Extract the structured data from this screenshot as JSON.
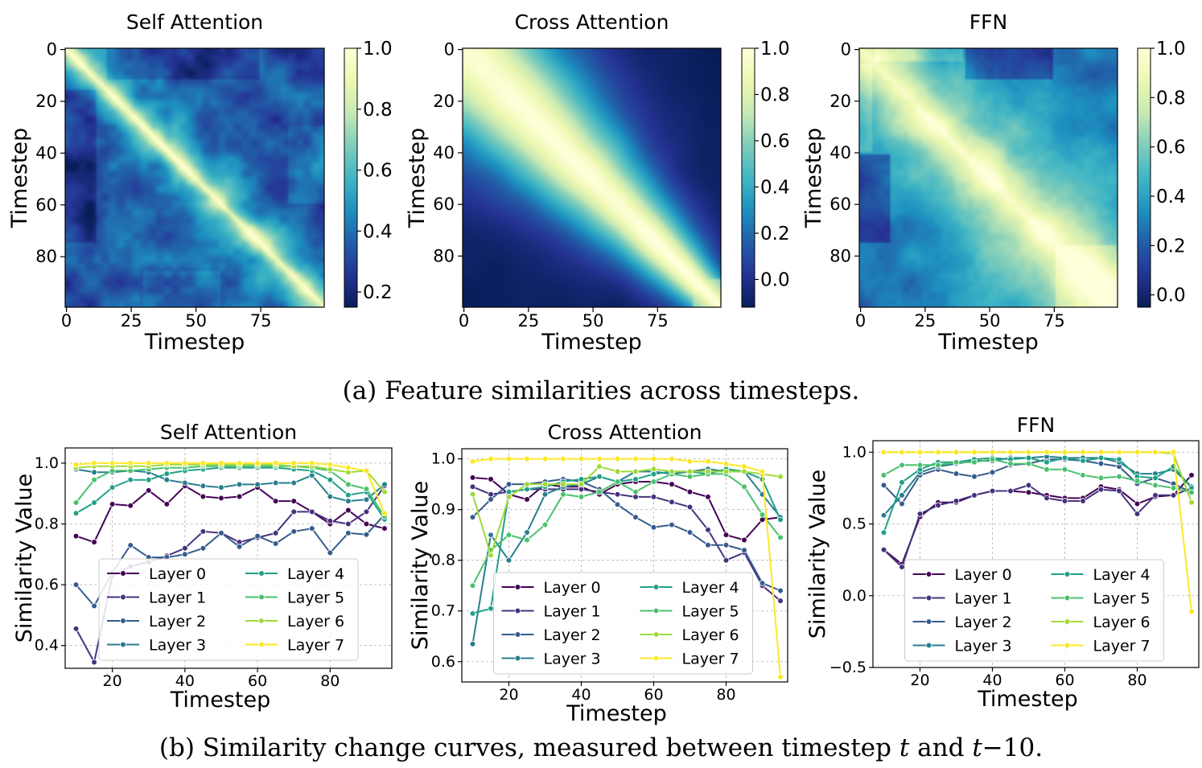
{
  "captions": {
    "a": "(a) Feature similarities across timesteps.",
    "b_prefix": "(b) Similarity change curves, measured between timestep ",
    "b_t": "t",
    "b_and": " and ",
    "b_t2": "t",
    "b_minus": "−10."
  },
  "colors": {
    "layers": [
      "#440154",
      "#46327e",
      "#365c8d",
      "#277f8e",
      "#1fa187",
      "#4ac16d",
      "#a0da39",
      "#fde725"
    ]
  },
  "chart_data": [
    {
      "type": "heatmap",
      "title": "Self Attention",
      "xlabel": "Timestep",
      "ylabel": "Timestep",
      "x_ticks": [
        0,
        25,
        50,
        75
      ],
      "y_ticks": [
        0,
        20,
        40,
        60,
        80
      ],
      "size": 100,
      "colorbar": {
        "min": 0.15,
        "max": 1.0,
        "ticks": [
          1.0,
          0.8,
          0.6,
          0.4,
          0.2
        ],
        "tick_labels": [
          "1.0",
          "0.8",
          "0.6",
          "0.4",
          "0.2"
        ]
      },
      "colormap": "YlGnBu"
    },
    {
      "type": "heatmap",
      "title": "Cross Attention",
      "xlabel": "Timestep",
      "ylabel": "Timestep",
      "x_ticks": [
        0,
        25,
        50,
        75
      ],
      "y_ticks": [
        0,
        20,
        40,
        60,
        80
      ],
      "size": 100,
      "colorbar": {
        "min": -0.12,
        "max": 1.0,
        "ticks": [
          1.0,
          0.8,
          0.6,
          0.4,
          0.2,
          0.0
        ],
        "tick_labels": [
          "1.0",
          "0.8",
          "0.6",
          "0.4",
          "0.2",
          "0.0"
        ]
      },
      "colormap": "YlGnBu"
    },
    {
      "type": "heatmap",
      "title": "FFN",
      "xlabel": "Timestep",
      "ylabel": "Timestep",
      "x_ticks": [
        0,
        25,
        50,
        75
      ],
      "y_ticks": [
        0,
        20,
        40,
        60,
        80
      ],
      "size": 100,
      "colorbar": {
        "min": -0.05,
        "max": 1.0,
        "ticks": [
          1.0,
          0.8,
          0.6,
          0.4,
          0.2,
          0.0
        ],
        "tick_labels": [
          "1.0",
          "0.8",
          "0.6",
          "0.4",
          "0.2",
          "0.0"
        ]
      },
      "colormap": "YlGnBu"
    },
    {
      "type": "line",
      "title": "Self Attention",
      "xlabel": "Timestep",
      "ylabel": "Similarity Value",
      "xlim": [
        7,
        97
      ],
      "ylim": [
        0.325,
        1.05
      ],
      "x_ticks": [
        20,
        40,
        60,
        80
      ],
      "y_ticks": [
        0.4,
        0.6,
        0.8,
        1.0
      ],
      "y_tick_labels": [
        "0.4",
        "0.6",
        "0.8",
        "1.0"
      ],
      "grid": true,
      "legend": "lower-center",
      "x": [
        10,
        15,
        20,
        25,
        30,
        35,
        40,
        45,
        50,
        55,
        60,
        65,
        70,
        75,
        80,
        85,
        90,
        95
      ],
      "series": [
        {
          "name": "Layer 0",
          "values": [
            0.76,
            0.74,
            0.865,
            0.86,
            0.91,
            0.865,
            0.925,
            0.89,
            0.885,
            0.89,
            0.92,
            0.875,
            0.875,
            0.84,
            0.8,
            0.845,
            0.8,
            0.785
          ]
        },
        {
          "name": "Layer 1",
          "values": [
            0.455,
            0.345,
            0.63,
            0.66,
            0.675,
            0.695,
            0.72,
            0.775,
            0.77,
            0.74,
            0.755,
            0.77,
            0.84,
            0.84,
            0.81,
            0.8,
            0.84,
            0.925
          ]
        },
        {
          "name": "Layer 2",
          "values": [
            0.6,
            0.53,
            0.64,
            0.73,
            0.69,
            0.69,
            0.7,
            0.72,
            0.77,
            0.725,
            0.76,
            0.735,
            0.775,
            0.785,
            0.705,
            0.77,
            0.765,
            0.83
          ]
        },
        {
          "name": "Layer 3",
          "values": [
            0.98,
            0.97,
            0.97,
            0.975,
            0.97,
            0.945,
            0.935,
            0.925,
            0.92,
            0.93,
            0.93,
            0.935,
            0.935,
            0.96,
            0.89,
            0.875,
            0.88,
            0.93
          ]
        },
        {
          "name": "Layer 4",
          "values": [
            0.835,
            0.87,
            0.92,
            0.945,
            0.945,
            0.965,
            0.975,
            0.98,
            0.985,
            0.985,
            0.985,
            0.985,
            0.98,
            0.975,
            0.945,
            0.895,
            0.905,
            0.815
          ]
        },
        {
          "name": "Layer 5",
          "values": [
            0.87,
            0.945,
            0.975,
            0.975,
            0.98,
            0.985,
            0.985,
            0.99,
            0.99,
            0.99,
            0.99,
            0.99,
            0.99,
            0.985,
            0.975,
            0.93,
            0.915,
            0.825
          ]
        },
        {
          "name": "Layer 6",
          "values": [
            0.985,
            0.99,
            0.99,
            0.99,
            0.99,
            0.995,
            0.995,
            0.995,
            0.995,
            0.995,
            0.995,
            0.995,
            0.99,
            0.99,
            0.98,
            0.97,
            0.975,
            0.905
          ]
        },
        {
          "name": "Layer 7",
          "values": [
            0.995,
            1.0,
            1.0,
            1.0,
            1.0,
            1.0,
            1.0,
            1.0,
            1.0,
            1.0,
            1.0,
            1.0,
            1.0,
            1.0,
            0.995,
            0.985,
            0.975,
            0.835
          ]
        }
      ]
    },
    {
      "type": "line",
      "title": "Cross Attention",
      "xlabel": "Timestep",
      "ylabel": "Similarity Value",
      "xlim": [
        7,
        97
      ],
      "ylim": [
        0.56,
        1.02
      ],
      "x_ticks": [
        20,
        40,
        60,
        80
      ],
      "y_ticks": [
        0.6,
        0.7,
        0.8,
        0.9,
        1.0
      ],
      "y_tick_labels": [
        "0.6",
        "0.7",
        "0.8",
        "0.9",
        "1.0"
      ],
      "grid": true,
      "legend": "lower-center",
      "x": [
        10,
        15,
        20,
        25,
        30,
        35,
        40,
        45,
        50,
        55,
        60,
        65,
        70,
        75,
        80,
        85,
        90,
        95
      ],
      "series": [
        {
          "name": "Layer 0",
          "values": [
            0.963,
            0.96,
            0.93,
            0.92,
            0.95,
            0.945,
            0.945,
            0.93,
            0.95,
            0.955,
            0.955,
            0.95,
            0.935,
            0.925,
            0.85,
            0.84,
            0.88,
            0.885
          ]
        },
        {
          "name": "Layer 1",
          "values": [
            0.945,
            0.93,
            0.935,
            0.94,
            0.94,
            0.94,
            0.94,
            0.935,
            0.93,
            0.925,
            0.925,
            0.915,
            0.905,
            0.86,
            0.8,
            0.815,
            0.75,
            0.72
          ]
        },
        {
          "name": "Layer 2",
          "values": [
            0.885,
            0.92,
            0.95,
            0.95,
            0.955,
            0.96,
            0.955,
            0.94,
            0.91,
            0.885,
            0.865,
            0.87,
            0.855,
            0.83,
            0.83,
            0.82,
            0.755,
            0.74
          ]
        },
        {
          "name": "Layer 3",
          "values": [
            0.635,
            0.85,
            0.8,
            0.855,
            0.93,
            0.945,
            0.95,
            0.965,
            0.955,
            0.975,
            0.975,
            0.97,
            0.975,
            0.98,
            0.975,
            0.975,
            0.93,
            0.885
          ]
        },
        {
          "name": "Layer 4",
          "values": [
            0.695,
            0.705,
            0.935,
            0.94,
            0.945,
            0.955,
            0.96,
            0.965,
            0.955,
            0.96,
            0.97,
            0.975,
            0.975,
            0.97,
            0.98,
            0.975,
            0.96,
            0.88
          ]
        },
        {
          "name": "Layer 5",
          "values": [
            0.75,
            0.82,
            0.85,
            0.84,
            0.87,
            0.93,
            0.925,
            0.935,
            0.955,
            0.935,
            0.955,
            0.97,
            0.965,
            0.97,
            0.97,
            0.945,
            0.89,
            0.845
          ]
        },
        {
          "name": "Layer 6",
          "values": [
            0.93,
            0.81,
            0.925,
            0.95,
            0.95,
            0.95,
            0.95,
            0.985,
            0.975,
            0.975,
            0.98,
            0.975,
            0.975,
            0.975,
            0.975,
            0.975,
            0.97,
            0.965
          ]
        },
        {
          "name": "Layer 7",
          "values": [
            0.995,
            1.0,
            1.0,
            1.0,
            1.0,
            1.0,
            1.0,
            1.0,
            1.0,
            1.0,
            1.0,
            1.0,
            0.995,
            0.995,
            0.99,
            0.985,
            0.975,
            0.57
          ]
        }
      ]
    },
    {
      "type": "line",
      "title": "FFN",
      "xlabel": "Timestep",
      "ylabel": "Similarity Value",
      "xlim": [
        7,
        97
      ],
      "ylim": [
        -0.5,
        1.08
      ],
      "x_ticks": [
        20,
        40,
        60,
        80
      ],
      "y_ticks": [
        -0.5,
        0.0,
        0.5,
        1.0
      ],
      "y_tick_labels": [
        "−0.5",
        "0.0",
        "0.5",
        "1.0"
      ],
      "grid": true,
      "legend": "lower-center",
      "x": [
        10,
        15,
        20,
        25,
        30,
        35,
        40,
        45,
        50,
        55,
        60,
        65,
        70,
        75,
        80,
        85,
        90,
        95
      ],
      "series": [
        {
          "name": "Layer 0",
          "values": [
            0.32,
            0.22,
            0.55,
            0.65,
            0.65,
            0.7,
            0.73,
            0.73,
            0.72,
            0.7,
            0.68,
            0.68,
            0.76,
            0.74,
            0.64,
            0.69,
            0.7,
            0.84
          ]
        },
        {
          "name": "Layer 1",
          "values": [
            0.32,
            0.2,
            0.57,
            0.63,
            0.66,
            0.7,
            0.73,
            0.73,
            0.77,
            0.68,
            0.66,
            0.66,
            0.74,
            0.73,
            0.57,
            0.7,
            0.7,
            0.75
          ]
        },
        {
          "name": "Layer 2",
          "values": [
            0.77,
            0.64,
            0.84,
            0.88,
            0.85,
            0.83,
            0.86,
            0.91,
            0.92,
            0.95,
            0.95,
            0.94,
            0.92,
            0.9,
            0.78,
            0.82,
            0.78,
            0.72
          ]
        },
        {
          "name": "Layer 3",
          "values": [
            0.56,
            0.7,
            0.86,
            0.9,
            0.92,
            0.94,
            0.94,
            0.96,
            0.96,
            0.97,
            0.96,
            0.96,
            0.96,
            0.93,
            0.85,
            0.85,
            0.88,
            0.76
          ]
        },
        {
          "name": "Layer 4",
          "values": [
            0.44,
            0.79,
            0.88,
            0.93,
            0.93,
            0.95,
            0.96,
            0.95,
            0.96,
            0.93,
            0.96,
            0.94,
            0.96,
            0.95,
            0.83,
            0.82,
            0.9,
            0.75
          ]
        },
        {
          "name": "Layer 5",
          "values": [
            0.84,
            0.91,
            0.91,
            0.91,
            0.93,
            0.93,
            0.95,
            0.92,
            0.92,
            0.88,
            0.88,
            0.84,
            0.82,
            0.83,
            0.8,
            0.77,
            0.75,
            0.72
          ]
        },
        {
          "name": "Layer 6",
          "values": [
            1.0,
            1.0,
            1.0,
            1.0,
            1.0,
            1.0,
            1.0,
            1.0,
            1.0,
            1.0,
            1.0,
            1.0,
            1.0,
            1.0,
            1.0,
            1.0,
            0.99,
            0.65
          ]
        },
        {
          "name": "Layer 7",
          "values": [
            1.0,
            1.0,
            1.0,
            1.0,
            1.0,
            1.0,
            1.0,
            1.0,
            1.0,
            1.0,
            1.0,
            1.0,
            1.0,
            1.0,
            1.0,
            1.0,
            1.0,
            -0.11
          ]
        }
      ]
    }
  ]
}
